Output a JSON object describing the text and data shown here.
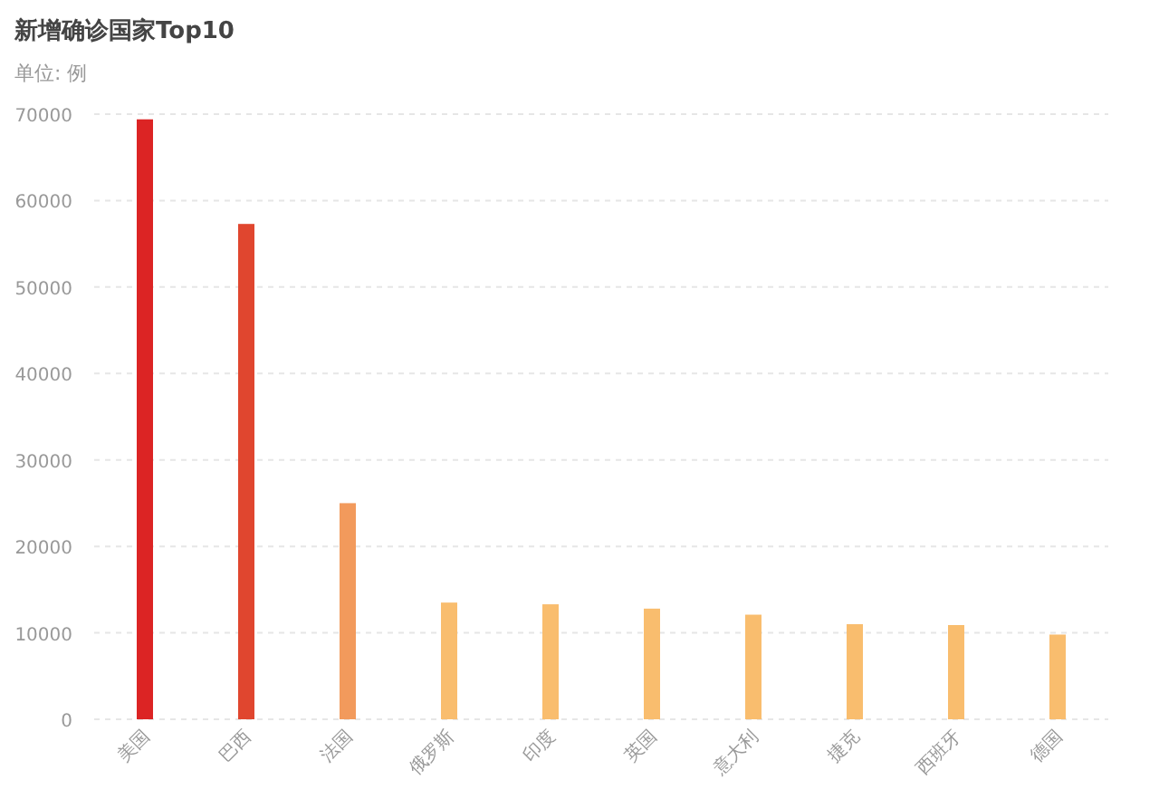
{
  "chart_data": {
    "type": "bar",
    "title": "新增确诊国家Top10",
    "subtitle": "单位: 例",
    "categories": [
      "美国",
      "巴西",
      "法国",
      "俄罗斯",
      "印度",
      "英国",
      "意大利",
      "捷克",
      "西班牙",
      "德国"
    ],
    "values": [
      69400,
      57300,
      25000,
      13500,
      13300,
      12800,
      12100,
      11000,
      10900,
      9800
    ],
    "colors": [
      "#dc2424",
      "#e0462f",
      "#f29a5c",
      "#f9bd6e",
      "#f9bd6e",
      "#f9bd6e",
      "#f9bd6e",
      "#f9bd6e",
      "#f9bd6e",
      "#f9bd6e"
    ],
    "ylim": [
      0,
      70000
    ],
    "yticks": [
      0,
      10000,
      20000,
      30000,
      40000,
      50000,
      60000,
      70000
    ],
    "grid": "y"
  }
}
